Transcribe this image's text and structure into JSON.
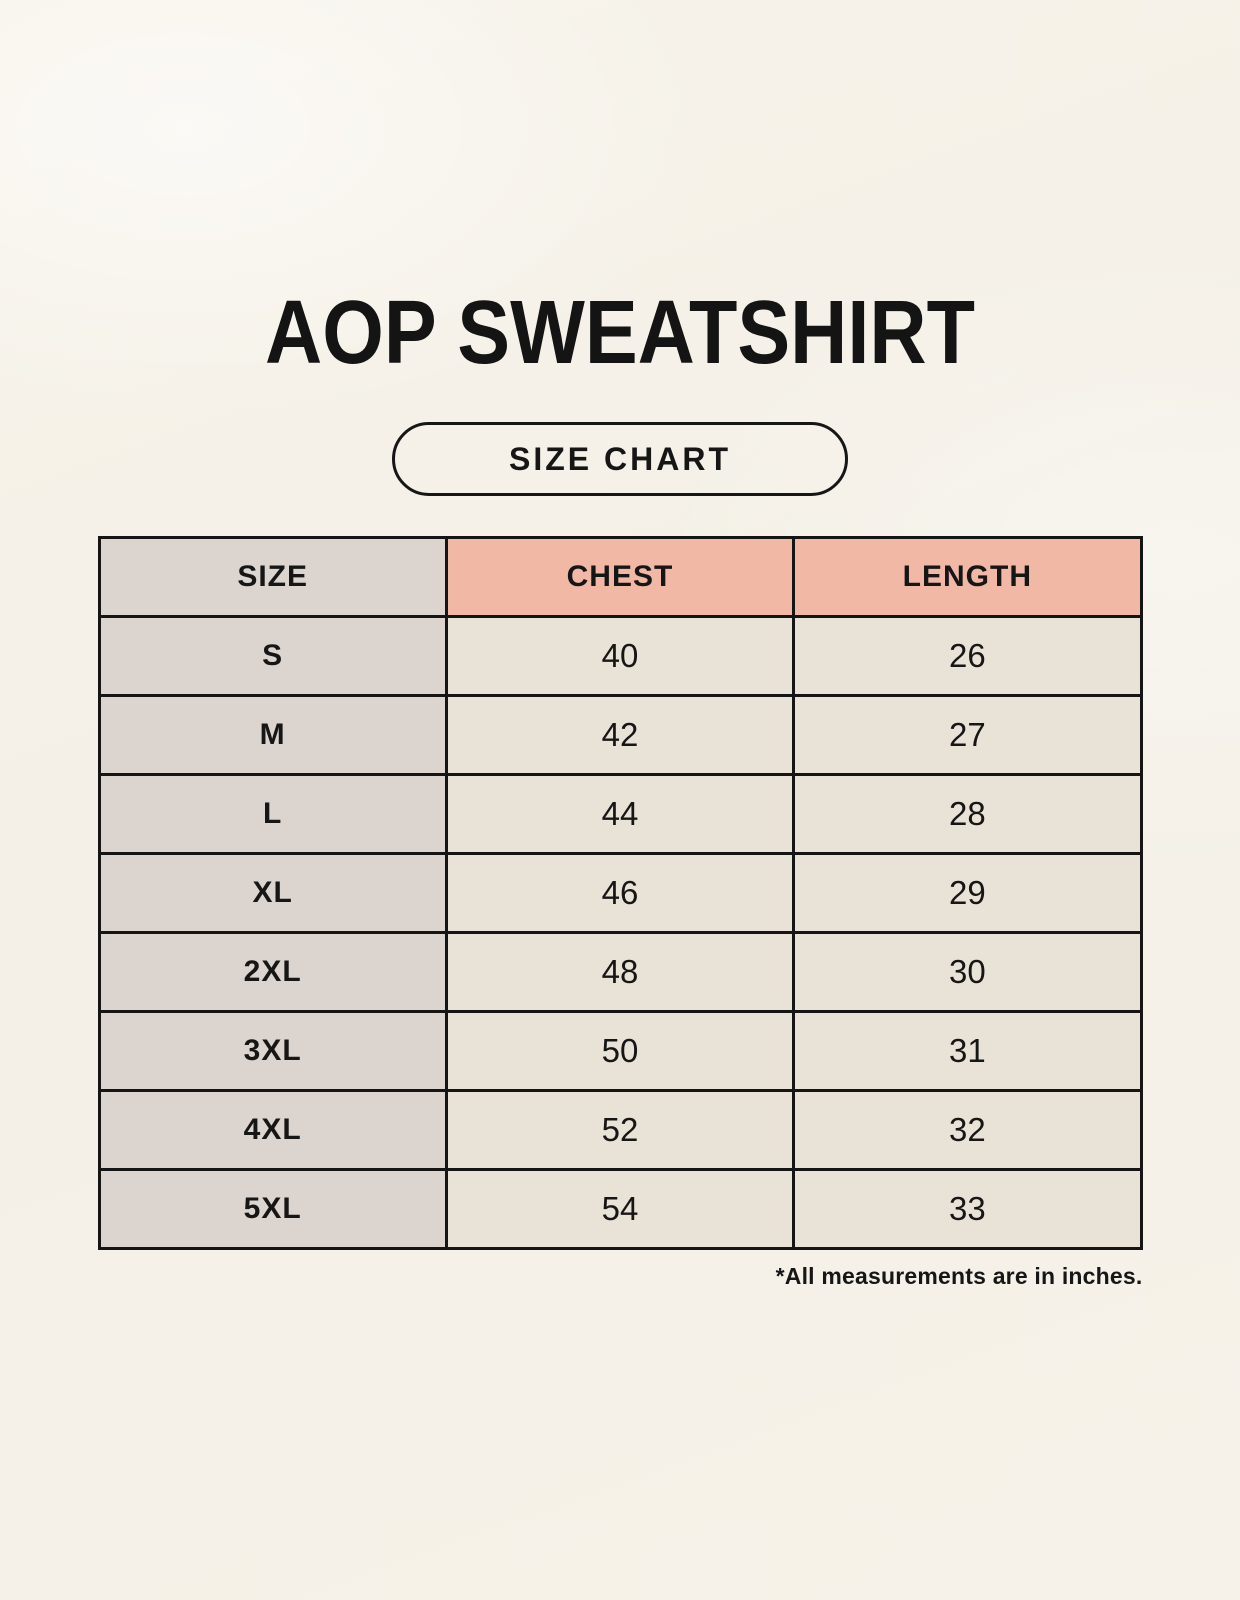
{
  "page": {
    "title": "AOP SWEATSHIRT",
    "size_chart_badge": "SIZE CHART",
    "footnote": "*All measurements are in inches."
  },
  "chart_data": {
    "type": "table",
    "title": "AOP SWEATSHIRT SIZE CHART",
    "columns": [
      "SIZE",
      "CHEST",
      "LENGTH"
    ],
    "rows": [
      {
        "size": "S",
        "chest": 40,
        "length": 26
      },
      {
        "size": "M",
        "chest": 42,
        "length": 27
      },
      {
        "size": "L",
        "chest": 44,
        "length": 28
      },
      {
        "size": "XL",
        "chest": 46,
        "length": 29
      },
      {
        "size": "2XL",
        "chest": 48,
        "length": 30
      },
      {
        "size": "3XL",
        "chest": 50,
        "length": 31
      },
      {
        "size": "4XL",
        "chest": 52,
        "length": 32
      },
      {
        "size": "5XL",
        "chest": 54,
        "length": 33
      }
    ],
    "footnote": "*All measurements are in inches."
  },
  "colors": {
    "background": "#F5F1E8",
    "size_column": "#DBD4CF",
    "header_accent": "#F0B8A5",
    "data_cell": "#E9E2D7",
    "border": "#151515",
    "text": "#161616"
  }
}
